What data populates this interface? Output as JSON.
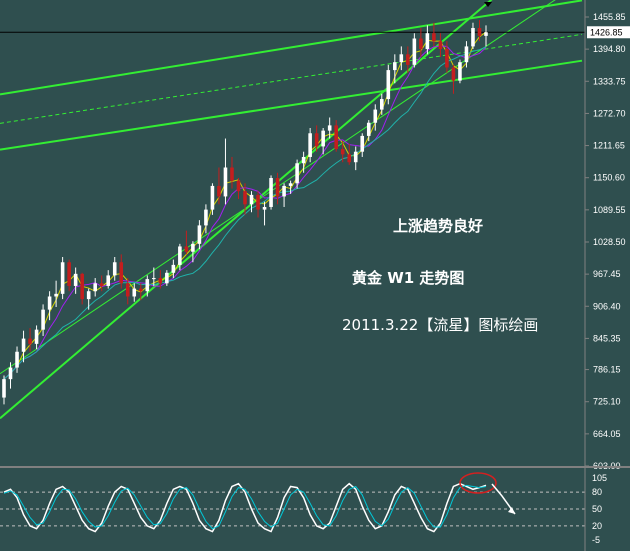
{
  "chart_data": [
    {
      "type": "candlestick",
      "title": "",
      "timeframe": "W1",
      "y_ticks": [
        "1455.85",
        "1394.80",
        "1333.75",
        "1272.70",
        "1211.65",
        "1150.60",
        "1089.55",
        "1028.50",
        "967.45",
        "906.40",
        "845.35",
        "786.15",
        "725.10",
        "664.05",
        "603.00"
      ],
      "current_price": "1426.85",
      "ylim": [
        603.0,
        1455.85
      ],
      "annotations": [
        "上涨趋势良好",
        "黄金 W1 走势图",
        "2011.3.22【流星】图标绘画"
      ],
      "colors": {
        "up": "#ffffff",
        "down": "#c41e1e",
        "trendline": "#33ee33",
        "ma_fast": "#d4d400",
        "ma_mid": "#a020f0",
        "ma_slow": "#20b2aa"
      },
      "candles": [
        [
          733,
          775,
          720,
          768
        ],
        [
          768,
          800,
          750,
          790
        ],
        [
          790,
          830,
          780,
          820
        ],
        [
          820,
          860,
          800,
          845
        ],
        [
          845,
          865,
          820,
          835
        ],
        [
          835,
          870,
          825,
          862
        ],
        [
          862,
          910,
          850,
          900
        ],
        [
          900,
          935,
          880,
          925
        ],
        [
          925,
          955,
          905,
          930
        ],
        [
          930,
          1000,
          920,
          990
        ],
        [
          990,
          995,
          935,
          945
        ],
        [
          945,
          980,
          930,
          968
        ],
        [
          968,
          970,
          910,
          920
        ],
        [
          920,
          940,
          900,
          935
        ],
        [
          935,
          960,
          925,
          950
        ],
        [
          950,
          965,
          935,
          945
        ],
        [
          945,
          975,
          940,
          965
        ],
        [
          965,
          1000,
          955,
          990
        ],
        [
          990,
          1005,
          940,
          950
        ],
        [
          950,
          960,
          910,
          925
        ],
        [
          925,
          950,
          915,
          940
        ],
        [
          940,
          950,
          918,
          935
        ],
        [
          935,
          965,
          925,
          958
        ],
        [
          958,
          980,
          945,
          960
        ],
        [
          960,
          975,
          940,
          950
        ],
        [
          950,
          975,
          945,
          970
        ],
        [
          970,
          995,
          960,
          985
        ],
        [
          985,
          1025,
          975,
          1020
        ],
        [
          1020,
          1050,
          1005,
          1010
        ],
        [
          1010,
          1030,
          990,
          1025
        ],
        [
          1025,
          1070,
          1015,
          1060
        ],
        [
          1060,
          1100,
          1045,
          1090
        ],
        [
          1090,
          1140,
          1080,
          1135
        ],
        [
          1135,
          1170,
          1100,
          1115
        ],
        [
          1115,
          1225,
          1100,
          1170
        ],
        [
          1170,
          1190,
          1130,
          1145
        ],
        [
          1145,
          1150,
          1110,
          1125
        ],
        [
          1125,
          1140,
          1080,
          1100
        ],
        [
          1100,
          1125,
          1085,
          1118
        ],
        [
          1118,
          1125,
          1075,
          1090
        ],
        [
          1090,
          1105,
          1060,
          1095
        ],
        [
          1095,
          1155,
          1090,
          1150
        ],
        [
          1150,
          1160,
          1100,
          1115
        ],
        [
          1115,
          1140,
          1095,
          1135
        ],
        [
          1135,
          1145,
          1120,
          1140
        ],
        [
          1140,
          1185,
          1130,
          1178
        ],
        [
          1178,
          1200,
          1160,
          1190
        ],
        [
          1190,
          1245,
          1180,
          1235
        ],
        [
          1235,
          1250,
          1200,
          1210
        ],
        [
          1210,
          1245,
          1195,
          1240
        ],
        [
          1240,
          1265,
          1225,
          1250
        ],
        [
          1250,
          1260,
          1200,
          1205
        ],
        [
          1205,
          1220,
          1180,
          1195
        ],
        [
          1195,
          1215,
          1175,
          1180
        ],
        [
          1180,
          1210,
          1165,
          1200
        ],
        [
          1200,
          1235,
          1190,
          1230
        ],
        [
          1230,
          1260,
          1220,
          1255
        ],
        [
          1255,
          1290,
          1240,
          1280
        ],
        [
          1280,
          1310,
          1270,
          1300
        ],
        [
          1300,
          1365,
          1290,
          1355
        ],
        [
          1355,
          1385,
          1330,
          1370
        ],
        [
          1370,
          1400,
          1355,
          1385
        ],
        [
          1385,
          1400,
          1350,
          1365
        ],
        [
          1365,
          1425,
          1360,
          1415
        ],
        [
          1415,
          1435,
          1380,
          1395
        ],
        [
          1395,
          1440,
          1385,
          1425
        ],
        [
          1425,
          1445,
          1400,
          1410
        ],
        [
          1410,
          1425,
          1380,
          1395
        ],
        [
          1395,
          1410,
          1350,
          1360
        ],
        [
          1360,
          1365,
          1310,
          1335
        ],
        [
          1335,
          1375,
          1330,
          1370
        ],
        [
          1370,
          1410,
          1360,
          1400
        ],
        [
          1400,
          1445,
          1395,
          1435
        ],
        [
          1435,
          1450,
          1410,
          1420
        ],
        [
          1420,
          1440,
          1400,
          1426.85
        ]
      ],
      "trendlines_price": [
        {
          "name": "upper-channel",
          "p1": [
            0,
            1310
          ],
          "p2": [
            74,
            1458
          ],
          "style": "solid",
          "width": 2
        },
        {
          "name": "upper-mid",
          "p1": [
            0,
            1255
          ],
          "p2": [
            74,
            1395
          ],
          "style": "dashed",
          "width": 1
        },
        {
          "name": "lower-channel",
          "p1": [
            0,
            1205
          ],
          "p2": [
            74,
            1345
          ],
          "style": "solid",
          "width": 2
        },
        {
          "name": "major-support",
          "p1": [
            0,
            700
          ],
          "p2": [
            74,
            1480
          ],
          "style": "solid",
          "width": 2
        },
        {
          "name": "short-support",
          "p1": [
            56,
            1250
          ],
          "p2": [
            74,
            1400
          ],
          "style": "solid",
          "width": 1
        }
      ],
      "horizontal_line": 1426.85
    },
    {
      "type": "line",
      "indicator": "stochastic",
      "y_ticks": [
        "105",
        "80",
        "50",
        "20",
        "-5"
      ],
      "ylim": [
        -5,
        105
      ],
      "levels": [
        80,
        50,
        20
      ],
      "series": [
        {
          "values": [
            80,
            85,
            70,
            40,
            20,
            15,
            30,
            60,
            85,
            90,
            80,
            55,
            30,
            15,
            10,
            25,
            55,
            80,
            90,
            85,
            60,
            35,
            20,
            15,
            30,
            60,
            85,
            90,
            85,
            60,
            30,
            15,
            10,
            30,
            65,
            90,
            95,
            80,
            50,
            25,
            15,
            10,
            35,
            70,
            90,
            88,
            70,
            40,
            20,
            15,
            25,
            55,
            85,
            95,
            85,
            55,
            30,
            15,
            20,
            45,
            75,
            90,
            85,
            60,
            35,
            15,
            10,
            25,
            60,
            90,
            95,
            90,
            85,
            88,
            92
          ]
        },
        {
          "values": [
            78,
            82,
            75,
            55,
            35,
            22,
            25,
            45,
            70,
            85,
            84,
            68,
            45,
            28,
            18,
            20,
            38,
            62,
            82,
            87,
            75,
            55,
            35,
            22,
            24,
            42,
            68,
            85,
            88,
            75,
            50,
            28,
            15,
            20,
            45,
            72,
            88,
            85,
            68,
            45,
            28,
            18,
            25,
            50,
            75,
            85,
            80,
            60,
            38,
            22,
            20,
            38,
            65,
            85,
            90,
            75,
            48,
            28,
            20,
            32,
            58,
            80,
            88,
            78,
            55,
            32,
            18,
            18,
            40,
            70,
            88,
            92,
            90,
            88,
            90
          ]
        }
      ]
    }
  ]
}
